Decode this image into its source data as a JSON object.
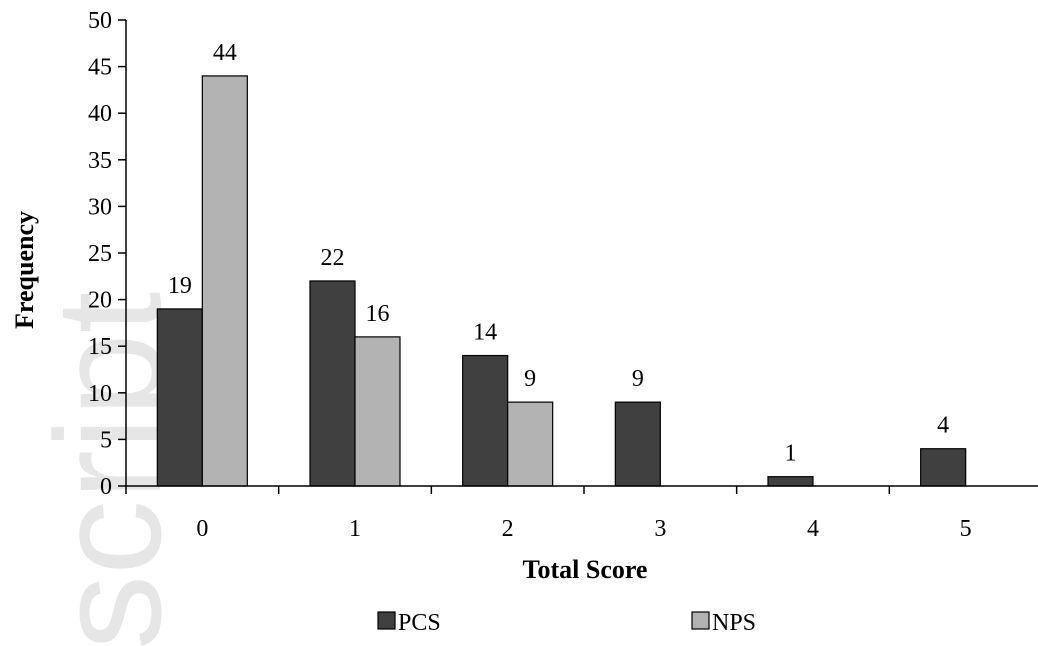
{
  "chart_data": {
    "type": "bar",
    "title": "",
    "xlabel": "Total Score",
    "ylabel": "Frequency",
    "categories": [
      "0",
      "1",
      "2",
      "3",
      "4",
      "5"
    ],
    "ylim": [
      0,
      50
    ],
    "yticks": [
      0,
      5,
      10,
      15,
      20,
      25,
      30,
      35,
      40,
      45,
      50
    ],
    "series": [
      {
        "name": "PCS",
        "values": [
          19,
          22,
          14,
          9,
          1,
          4
        ],
        "labels": [
          "19",
          "22",
          "14",
          "9",
          "1",
          "4"
        ],
        "color": "#404040"
      },
      {
        "name": "NPS",
        "values": [
          44,
          16,
          9,
          0,
          0,
          0
        ],
        "labels": [
          "44",
          "16",
          "9",
          null,
          null,
          null
        ],
        "color": "#b3b3b3"
      }
    ],
    "grid": false,
    "legend": "bottom"
  },
  "watermark": "script"
}
